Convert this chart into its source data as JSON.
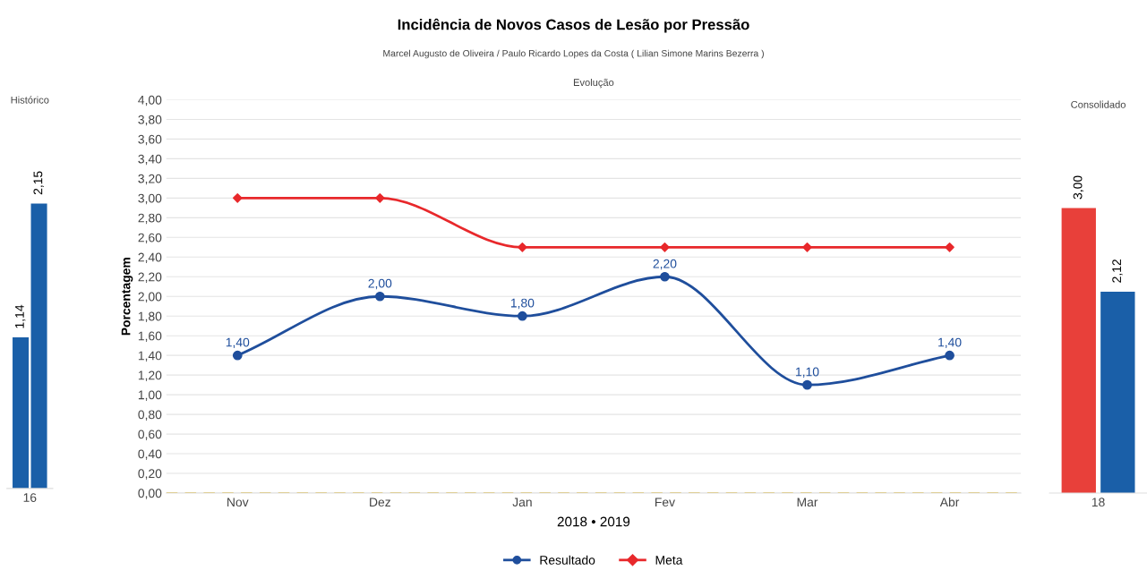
{
  "chart_data": [
    {
      "type": "bar",
      "title": "Histórico",
      "categories": [
        "16"
      ],
      "series": [
        {
          "color": "#1a5fa8",
          "values": [
            1.14
          ],
          "value_labels": [
            "1,14"
          ]
        },
        {
          "color": "#1a5fa8",
          "values": [
            2.15
          ],
          "value_labels": [
            "2,15"
          ]
        }
      ]
    },
    {
      "type": "line",
      "title": "Incidência de Novos Casos de Lesão por Pressão",
      "subtitle": "Marcel Augusto de Oliveira / Paulo Ricardo Lopes da Costa ( Lilian Simone Marins Bezerra )",
      "annotations": [
        "Evolução"
      ],
      "xlabel": "2018 • 2019",
      "ylabel": "Porcentagem",
      "categories": [
        "Nov",
        "Dez",
        "Jan",
        "Fev",
        "Mar",
        "Abr"
      ],
      "ylim": [
        0,
        4
      ],
      "yticks": [
        {
          "value": 0,
          "label": "0,00"
        },
        {
          "value": 0.2,
          "label": "0,20"
        },
        {
          "value": 0.4,
          "label": "0,40"
        },
        {
          "value": 0.6,
          "label": "0,60"
        },
        {
          "value": 0.8,
          "label": "0,80"
        },
        {
          "value": 1.0,
          "label": "1,00"
        },
        {
          "value": 1.2,
          "label": "1,20"
        },
        {
          "value": 1.4,
          "label": "1,40"
        },
        {
          "value": 1.6,
          "label": "1,60"
        },
        {
          "value": 1.8,
          "label": "1,80"
        },
        {
          "value": 2.0,
          "label": "2,00"
        },
        {
          "value": 2.2,
          "label": "2,20"
        },
        {
          "value": 2.4,
          "label": "2,40"
        },
        {
          "value": 2.6,
          "label": "2,60"
        },
        {
          "value": 2.8,
          "label": "2,80"
        },
        {
          "value": 3.0,
          "label": "3,00"
        },
        {
          "value": 3.2,
          "label": "3,20"
        },
        {
          "value": 3.4,
          "label": "3,40"
        },
        {
          "value": 3.6,
          "label": "3,60"
        },
        {
          "value": 3.8,
          "label": "3,80"
        },
        {
          "value": 4.0,
          "label": "4,00"
        }
      ],
      "series": [
        {
          "name": "Resultado",
          "color": "#1f4e9c",
          "marker": "circle",
          "values": [
            1.4,
            2.0,
            1.8,
            2.2,
            1.1,
            1.4
          ],
          "value_labels": [
            "1,40",
            "2,00",
            "1,80",
            "2,20",
            "1,10",
            "1,40"
          ]
        },
        {
          "name": "Meta",
          "color": "#e8282b",
          "marker": "diamond",
          "values": [
            3.0,
            3.0,
            2.5,
            2.5,
            2.5,
            2.5
          ]
        }
      ],
      "ref_lines": [
        {
          "axis": "y",
          "value": 0,
          "color": "#e0c050",
          "line_style": "dashed"
        }
      ],
      "grid": "y",
      "legend": "bottom"
    },
    {
      "type": "bar",
      "title": "Consolidado",
      "categories": [
        "18"
      ],
      "series": [
        {
          "color": "#e8403a",
          "values": [
            3.0
          ],
          "value_labels": [
            "3,00"
          ]
        },
        {
          "color": "#1a5fa8",
          "values": [
            2.12
          ],
          "value_labels": [
            "2,12"
          ]
        }
      ]
    }
  ]
}
